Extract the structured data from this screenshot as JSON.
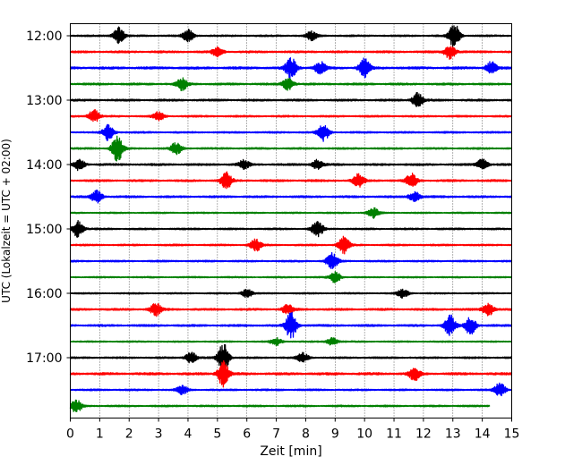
{
  "chart_data": {
    "type": "line",
    "xlabel": "Zeit  [min]",
    "ylabel": "UTC (Lokalzeit = UTC + 02:00)",
    "xlim": [
      0,
      15
    ],
    "x_ticks": [
      "0",
      "1",
      "2",
      "3",
      "4",
      "5",
      "6",
      "7",
      "8",
      "9",
      "10",
      "11",
      "12",
      "13",
      "14",
      "15"
    ],
    "y_ticks": [
      "12:00",
      "13:00",
      "14:00",
      "15:00",
      "16:00",
      "17:00"
    ],
    "y_tick_trace_index": [
      0,
      4,
      8,
      12,
      16,
      20
    ],
    "grid": "vertical dotted",
    "trace_colors": [
      "#000000",
      "#ff0000",
      "#0000ff",
      "#008000"
    ],
    "traces": [
      {
        "start": "12:00",
        "amp": 0.6,
        "events": [
          [
            1.65,
            1.8
          ],
          [
            4.0,
            1.3
          ],
          [
            8.2,
            0.9
          ],
          [
            13.05,
            2.6
          ]
        ]
      },
      {
        "start": "12:15",
        "amp": 0.7,
        "events": [
          [
            5.0,
            0.9
          ],
          [
            12.9,
            1.6
          ]
        ]
      },
      {
        "start": "12:30",
        "amp": 0.8,
        "events": [
          [
            7.5,
            2.2
          ],
          [
            8.5,
            1.3
          ],
          [
            10.0,
            2.0
          ],
          [
            14.3,
            1.3
          ]
        ]
      },
      {
        "start": "12:45",
        "amp": 0.7,
        "events": [
          [
            3.8,
            1.3
          ],
          [
            7.4,
            1.4
          ]
        ]
      },
      {
        "start": "13:00",
        "amp": 0.7,
        "events": [
          [
            11.8,
            1.6
          ]
        ]
      },
      {
        "start": "13:15",
        "amp": 0.6,
        "events": [
          [
            0.8,
            1.4
          ],
          [
            3.0,
            0.9
          ]
        ]
      },
      {
        "start": "13:30",
        "amp": 0.6,
        "events": [
          [
            1.3,
            1.8
          ],
          [
            8.6,
            1.9
          ]
        ]
      },
      {
        "start": "13:45",
        "amp": 0.6,
        "events": [
          [
            1.6,
            2.8
          ],
          [
            3.6,
            1.3
          ]
        ]
      },
      {
        "start": "14:00",
        "amp": 0.7,
        "events": [
          [
            0.3,
            1.2
          ],
          [
            5.9,
            1.0
          ],
          [
            8.4,
            1.0
          ],
          [
            14.0,
            1.2
          ]
        ]
      },
      {
        "start": "14:15",
        "amp": 0.7,
        "events": [
          [
            5.3,
            1.8
          ],
          [
            9.8,
            1.4
          ],
          [
            11.6,
            1.6
          ]
        ]
      },
      {
        "start": "14:30",
        "amp": 0.7,
        "events": [
          [
            0.9,
            1.3
          ],
          [
            11.7,
            1.1
          ]
        ]
      },
      {
        "start": "14:45",
        "amp": 0.5,
        "events": [
          [
            10.3,
            1.1
          ]
        ]
      },
      {
        "start": "15:00",
        "amp": 0.6,
        "events": [
          [
            0.25,
            1.8
          ],
          [
            8.4,
            1.8
          ]
        ]
      },
      {
        "start": "15:15",
        "amp": 0.6,
        "events": [
          [
            6.3,
            1.4
          ],
          [
            9.3,
            1.8
          ]
        ]
      },
      {
        "start": "15:30",
        "amp": 0.6,
        "events": [
          [
            8.9,
            2.0
          ]
        ]
      },
      {
        "start": "15:45",
        "amp": 0.5,
        "events": [
          [
            9.0,
            1.2
          ]
        ]
      },
      {
        "start": "16:00",
        "amp": 0.5,
        "events": [
          [
            6.0,
            0.9
          ],
          [
            11.3,
            0.9
          ]
        ]
      },
      {
        "start": "16:15",
        "amp": 0.7,
        "events": [
          [
            2.9,
            1.4
          ],
          [
            7.4,
            1.1
          ],
          [
            14.2,
            1.4
          ]
        ]
      },
      {
        "start": "16:30",
        "amp": 0.7,
        "events": [
          [
            7.5,
            3.0
          ],
          [
            12.9,
            2.4
          ],
          [
            13.6,
            2.0
          ]
        ]
      },
      {
        "start": "16:45",
        "amp": 0.5,
        "events": [
          [
            7.0,
            0.8
          ],
          [
            8.9,
            0.8
          ]
        ]
      },
      {
        "start": "17:00",
        "amp": 0.6,
        "events": [
          [
            4.1,
            1.2
          ],
          [
            5.2,
            3.2
          ],
          [
            7.9,
            1.0
          ]
        ]
      },
      {
        "start": "17:15",
        "amp": 0.8,
        "events": [
          [
            5.2,
            2.8
          ],
          [
            11.7,
            1.4
          ]
        ]
      },
      {
        "start": "17:30",
        "amp": 0.6,
        "events": [
          [
            14.6,
            1.5
          ],
          [
            3.8,
            0.9
          ]
        ]
      },
      {
        "start": "17:45",
        "amp": 0.6,
        "events": [
          [
            0.2,
            1.4
          ]
        ],
        "end": 14.25
      }
    ]
  }
}
